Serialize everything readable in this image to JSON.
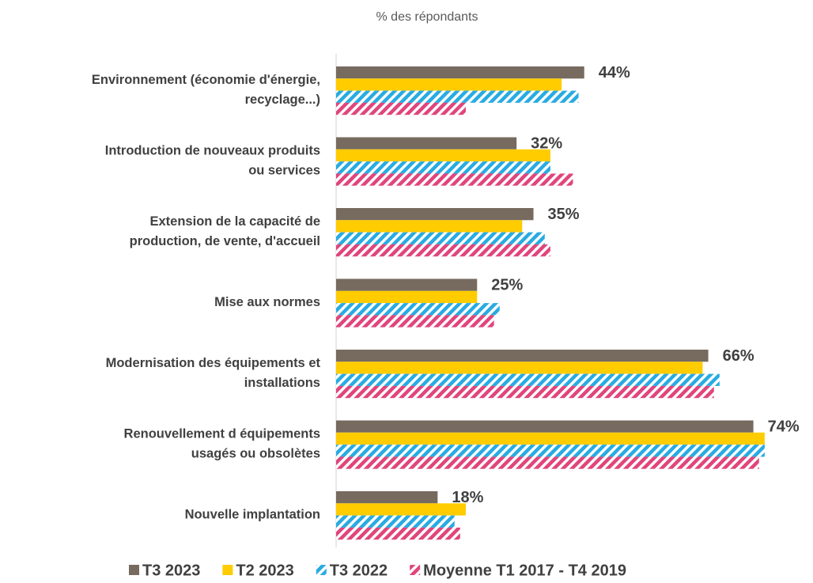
{
  "chart_data": {
    "type": "hbar",
    "subtitle": "% des répondants",
    "categories": [
      [
        "Environnement (économie d'énergie,",
        "recyclage...)"
      ],
      [
        "Introduction de nouveaux produits",
        "ou services"
      ],
      [
        "Extension de la capacité de",
        "production, de vente, d'accueil"
      ],
      [
        "Mise aux normes"
      ],
      [
        "Modernisation des équipements et",
        "installations"
      ],
      [
        "Renouvellement d équipements",
        "usagés ou obsolètes"
      ],
      [
        "Nouvelle implantation"
      ]
    ],
    "series": [
      {
        "name": "T3 2023",
        "color": "#776a5f",
        "pattern": "solid",
        "values": [
          44,
          32,
          35,
          25,
          66,
          74,
          18
        ],
        "value_labels": [
          "44%",
          "32%",
          "35%",
          "25%",
          "66%",
          "74%",
          "18%"
        ]
      },
      {
        "name": "T2 2023",
        "color": "#ffcc00",
        "pattern": "solid",
        "values": [
          40,
          38,
          33,
          25,
          65,
          76,
          23
        ]
      },
      {
        "name": "T3 2022",
        "color": "#29abe2",
        "pattern": "hatch",
        "values": [
          43,
          38,
          37,
          29,
          68,
          76,
          21
        ]
      },
      {
        "name": "Moyenne T1 2017 - T4 2019",
        "color": "#e0457b",
        "pattern": "hatch",
        "values": [
          23,
          42,
          38,
          28,
          67,
          75,
          22
        ]
      }
    ],
    "xlim": [
      0,
      84
    ]
  }
}
